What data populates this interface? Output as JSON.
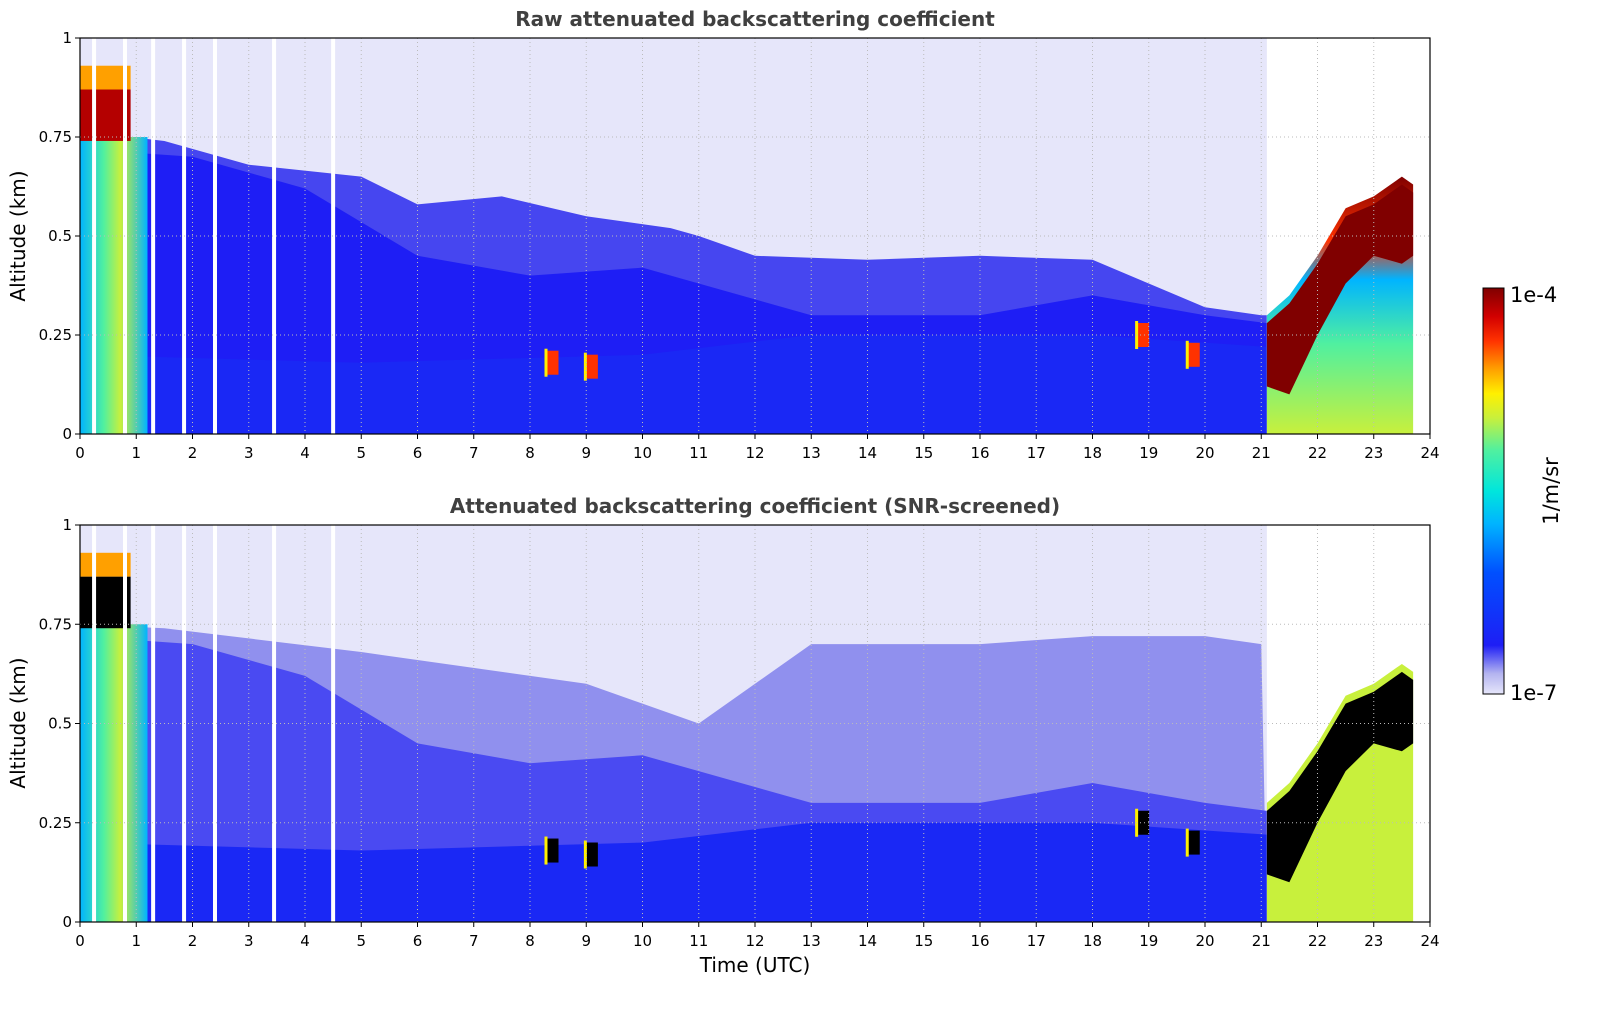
{
  "chart_data": [
    {
      "type": "heatmap",
      "title": "Raw attenuated backscattering coefficient",
      "xlabel": "",
      "ylabel": "Altitude (km)",
      "xlim": [
        0,
        24
      ],
      "ylim": [
        0,
        1
      ],
      "x_ticks": [
        "0",
        "1",
        "2",
        "3",
        "4",
        "5",
        "6",
        "7",
        "8",
        "9",
        "10",
        "11",
        "12",
        "13",
        "14",
        "15",
        "16",
        "17",
        "18",
        "19",
        "20",
        "21",
        "22",
        "23",
        "24"
      ],
      "y_ticks": [
        "0",
        "0.25",
        "0.5",
        "0.75",
        "1"
      ],
      "grid": true,
      "layer_top_km": {
        "time_utc": [
          0,
          0.9,
          1.5,
          3,
          5,
          6,
          7.5,
          9,
          10.5,
          11,
          12,
          14,
          16,
          18,
          19,
          20,
          21,
          21.1
        ],
        "top_km": [
          0.75,
          0.75,
          0.74,
          0.68,
          0.65,
          0.58,
          0.6,
          0.55,
          0.52,
          0.5,
          0.45,
          0.44,
          0.45,
          0.44,
          0.38,
          0.32,
          0.3,
          0.3
        ]
      },
      "low_cloud_layer": {
        "time_utc": [
          21.1,
          21.5,
          22.0,
          22.5,
          23.0,
          23.5,
          23.7
        ],
        "base_km": [
          0.12,
          0.1,
          0.25,
          0.38,
          0.45,
          0.43,
          0.45
        ],
        "top_km": [
          0.3,
          0.35,
          0.45,
          0.57,
          0.6,
          0.65,
          0.63
        ]
      },
      "data_gaps_utc": [
        0.25,
        0.8,
        1.3,
        1.85,
        2.4,
        3.45,
        4.5
      ],
      "strong_echo_spots": [
        {
          "time_utc": 0.5,
          "altitude_km": 0.8
        },
        {
          "time_utc": 8.4,
          "altitude_km": 0.18
        },
        {
          "time_utc": 9.1,
          "altitude_km": 0.17
        },
        {
          "time_utc": 18.9,
          "altitude_km": 0.25
        },
        {
          "time_utc": 19.8,
          "altitude_km": 0.2
        }
      ]
    },
    {
      "type": "heatmap",
      "title": "Attenuated backscattering coefficient (SNR-screened)",
      "xlabel": "Time (UTC)",
      "ylabel": "Altitude (km)",
      "xlim": [
        0,
        24
      ],
      "ylim": [
        0,
        1
      ],
      "x_ticks": [
        "0",
        "1",
        "2",
        "3",
        "4",
        "5",
        "6",
        "7",
        "8",
        "9",
        "10",
        "11",
        "12",
        "13",
        "14",
        "15",
        "16",
        "17",
        "18",
        "19",
        "20",
        "21",
        "22",
        "23",
        "24"
      ],
      "y_ticks": [
        "0",
        "0.25",
        "0.5",
        "0.75",
        "1"
      ],
      "grid": true,
      "screened_top_km": {
        "time_utc": [
          0,
          1.5,
          5,
          9,
          10,
          11,
          13,
          16,
          18,
          20,
          21
        ],
        "top_km": [
          0.75,
          0.74,
          0.68,
          0.6,
          0.55,
          0.5,
          0.7,
          0.7,
          0.72,
          0.72,
          0.7
        ]
      },
      "saturated_color": "#000000"
    }
  ],
  "colorbar": {
    "label": "1/m/sr",
    "max_label": "1e-4",
    "min_label": "1e-7",
    "scale": "log",
    "range": [
      1e-07,
      0.0001
    ],
    "colors": [
      "#e6e6fa",
      "#b4b4f0",
      "#1e1ef5",
      "#0050ff",
      "#00b4ff",
      "#00e6dc",
      "#50f0a0",
      "#c8f03c",
      "#fff000",
      "#ffa000",
      "#ff3200",
      "#d20000",
      "#800000"
    ]
  }
}
